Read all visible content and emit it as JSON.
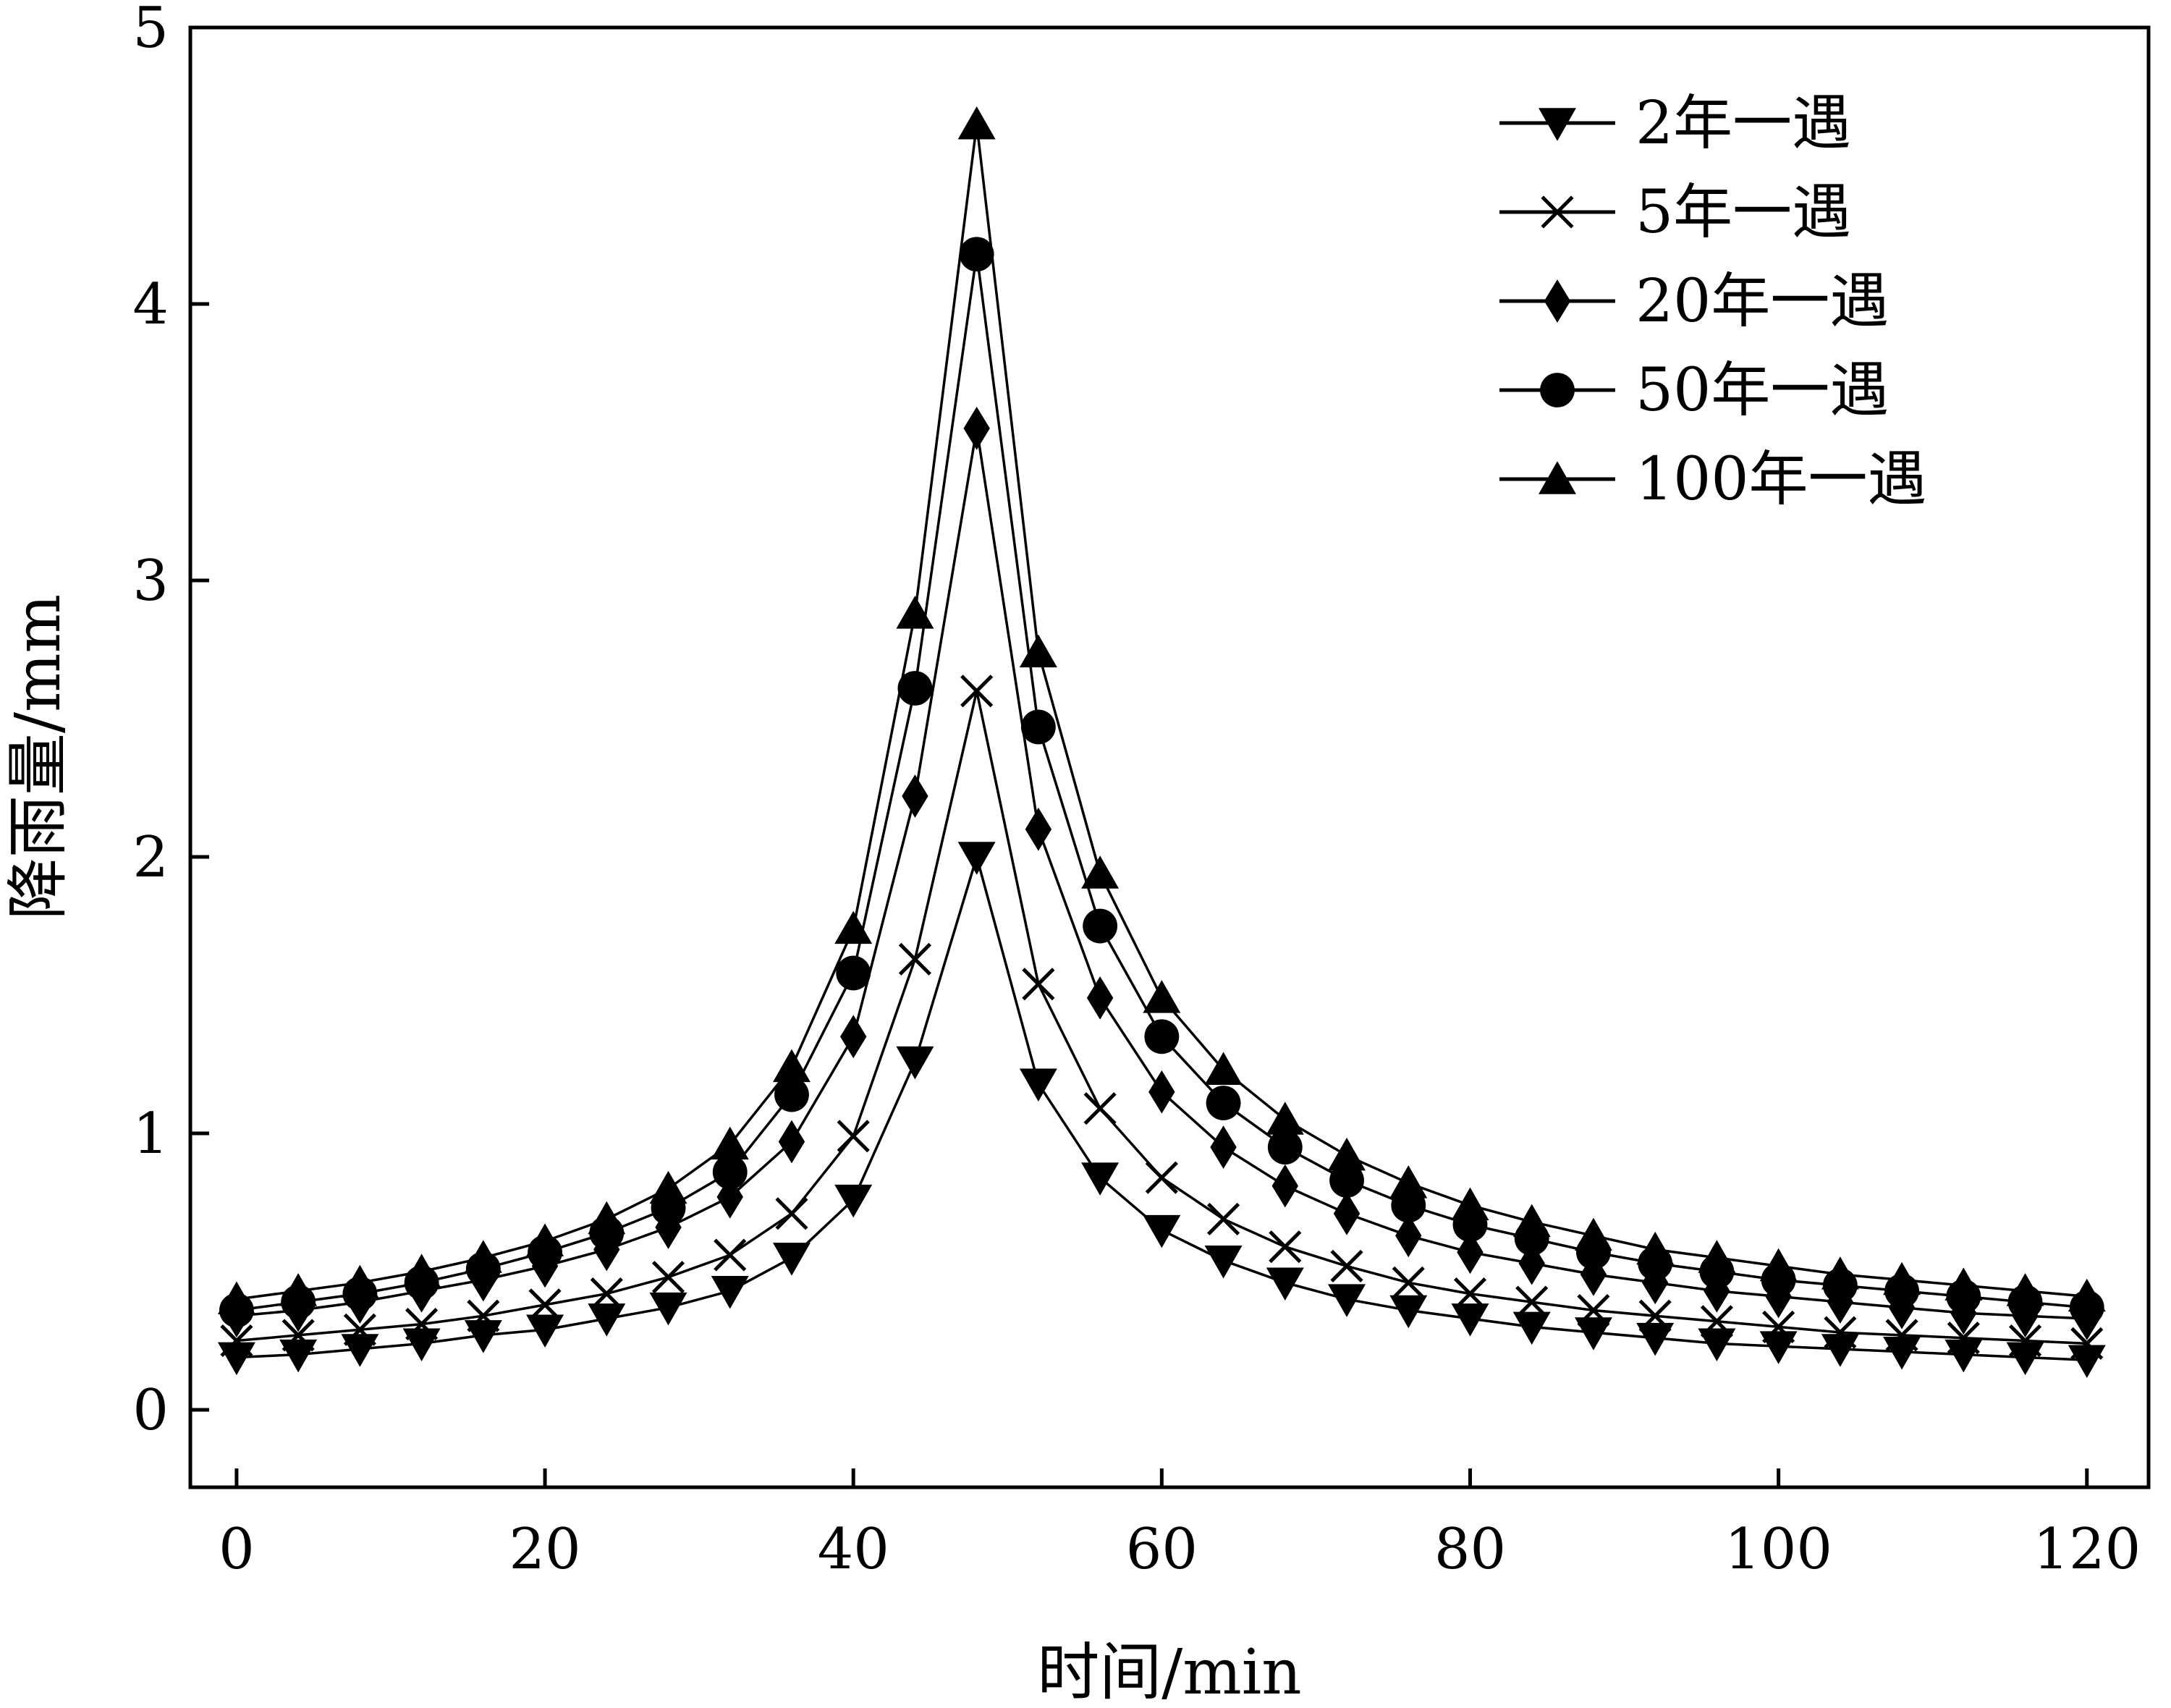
{
  "chart_data": {
    "type": "line",
    "title": "",
    "xlabel": "时间/min",
    "ylabel": "降雨量/mm",
    "xlim": [
      -3,
      124
    ],
    "ylim": [
      -0.28,
      5
    ],
    "x_ticks": [
      0,
      20,
      40,
      60,
      80,
      100,
      120
    ],
    "y_ticks": [
      0,
      1,
      2,
      3,
      4,
      5
    ],
    "grid": false,
    "legend_position": "top-right",
    "x": [
      0,
      4,
      8,
      12,
      16,
      20,
      24,
      28,
      32,
      36,
      40,
      44,
      48,
      52,
      56,
      60,
      64,
      68,
      72,
      76,
      80,
      84,
      88,
      92,
      96,
      100,
      104,
      108,
      112,
      116,
      120
    ],
    "series": [
      {
        "name": "2年一遇",
        "marker": "triangle-down",
        "values": [
          0.19,
          0.2,
          0.22,
          0.24,
          0.27,
          0.29,
          0.33,
          0.37,
          0.43,
          0.55,
          0.76,
          1.26,
          2.0,
          1.18,
          0.84,
          0.65,
          0.54,
          0.46,
          0.4,
          0.36,
          0.33,
          0.3,
          0.28,
          0.26,
          0.24,
          0.23,
          0.22,
          0.21,
          0.2,
          0.19,
          0.18
        ]
      },
      {
        "name": "5年一遇",
        "marker": "x",
        "values": [
          0.25,
          0.27,
          0.29,
          0.31,
          0.34,
          0.38,
          0.42,
          0.48,
          0.56,
          0.71,
          0.99,
          1.63,
          2.6,
          1.54,
          1.09,
          0.84,
          0.69,
          0.59,
          0.52,
          0.46,
          0.42,
          0.39,
          0.36,
          0.34,
          0.32,
          0.3,
          0.28,
          0.27,
          0.26,
          0.25,
          0.24
        ]
      },
      {
        "name": "20年一遇",
        "marker": "diamond",
        "values": [
          0.34,
          0.36,
          0.39,
          0.43,
          0.47,
          0.52,
          0.58,
          0.66,
          0.77,
          0.97,
          1.35,
          2.22,
          3.55,
          2.1,
          1.49,
          1.15,
          0.95,
          0.81,
          0.71,
          0.63,
          0.57,
          0.53,
          0.49,
          0.46,
          0.43,
          0.41,
          0.39,
          0.37,
          0.35,
          0.34,
          0.33
        ]
      },
      {
        "name": "50年一遇",
        "marker": "circle",
        "values": [
          0.36,
          0.39,
          0.42,
          0.46,
          0.51,
          0.57,
          0.64,
          0.73,
          0.86,
          1.14,
          1.58,
          2.61,
          4.18,
          2.47,
          1.75,
          1.35,
          1.11,
          0.95,
          0.83,
          0.74,
          0.67,
          0.62,
          0.57,
          0.53,
          0.5,
          0.47,
          0.45,
          0.43,
          0.41,
          0.39,
          0.37
        ]
      },
      {
        "name": "100年一遇",
        "marker": "triangle-up",
        "values": [
          0.4,
          0.43,
          0.46,
          0.5,
          0.55,
          0.61,
          0.69,
          0.8,
          0.96,
          1.24,
          1.74,
          2.88,
          4.65,
          2.74,
          1.94,
          1.49,
          1.23,
          1.05,
          0.92,
          0.82,
          0.74,
          0.68,
          0.63,
          0.58,
          0.55,
          0.52,
          0.49,
          0.47,
          0.45,
          0.43,
          0.41
        ]
      }
    ]
  }
}
